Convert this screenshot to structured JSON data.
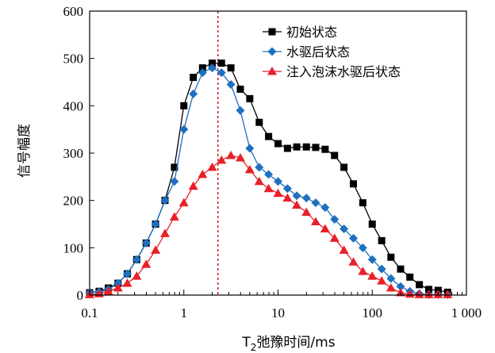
{
  "chart_data": {
    "type": "line",
    "x_scale": "log",
    "xlim": [
      0.1,
      1000
    ],
    "ylim": [
      0,
      600
    ],
    "x_ticks": [
      0.1,
      1,
      10,
      100,
      1000
    ],
    "x_tick_labels": [
      "0.1",
      "1",
      "10",
      "100",
      "1 000"
    ],
    "y_ticks": [
      0,
      100,
      200,
      300,
      400,
      500,
      600
    ],
    "y_tick_labels": [
      "0",
      "100",
      "200",
      "300",
      "400",
      "500",
      "600"
    ],
    "xlabel_main": "T",
    "xlabel_sub": "2",
    "xlabel_rest": "弛豫时间/ms",
    "ylabel": "信号幅度",
    "grid": false,
    "legend_position": "top-right",
    "reference_line": {
      "x": 2.3,
      "color": "#c00000",
      "style": "dashed"
    },
    "series": [
      {
        "name": "初始状态",
        "color": "#000000",
        "marker": "square",
        "x": [
          0.1,
          0.126,
          0.158,
          0.2,
          0.251,
          0.316,
          0.398,
          0.501,
          0.631,
          0.794,
          1.0,
          1.26,
          1.58,
          2.0,
          2.51,
          3.16,
          3.98,
          5.01,
          6.31,
          7.94,
          10.0,
          12.6,
          15.8,
          20.0,
          25.1,
          31.6,
          39.8,
          50.1,
          63.1,
          79.4,
          100,
          126,
          158,
          200,
          251,
          316,
          398,
          501,
          631
        ],
        "y": [
          5,
          8,
          15,
          25,
          45,
          75,
          110,
          150,
          200,
          270,
          400,
          460,
          480,
          490,
          490,
          480,
          435,
          415,
          365,
          335,
          320,
          310,
          313,
          313,
          312,
          308,
          295,
          270,
          235,
          195,
          150,
          115,
          80,
          55,
          38,
          22,
          12,
          10,
          6
        ]
      },
      {
        "name": "水驱后状态",
        "color": "#1f6fbf",
        "marker": "diamond",
        "x": [
          0.1,
          0.126,
          0.158,
          0.2,
          0.251,
          0.316,
          0.398,
          0.501,
          0.631,
          0.794,
          1.0,
          1.26,
          1.58,
          2.0,
          2.51,
          3.16,
          3.98,
          5.01,
          6.31,
          7.94,
          10.0,
          12.6,
          15.8,
          20.0,
          25.1,
          31.6,
          39.8,
          50.1,
          63.1,
          79.4,
          100,
          126,
          158,
          200,
          251,
          316,
          398,
          501,
          631
        ],
        "y": [
          5,
          7,
          12,
          25,
          45,
          75,
          110,
          150,
          200,
          240,
          350,
          425,
          470,
          480,
          470,
          445,
          390,
          310,
          270,
          255,
          240,
          225,
          210,
          205,
          195,
          185,
          160,
          140,
          120,
          100,
          75,
          55,
          35,
          18,
          8,
          3,
          1,
          1,
          1
        ]
      },
      {
        "name": "注入泡沫水驱后状态",
        "color": "#e8202a",
        "marker": "triangle",
        "x": [
          0.1,
          0.126,
          0.158,
          0.2,
          0.251,
          0.316,
          0.398,
          0.501,
          0.631,
          0.794,
          1.0,
          1.26,
          1.58,
          2.0,
          2.51,
          3.16,
          3.98,
          5.01,
          6.31,
          7.94,
          10.0,
          12.6,
          15.8,
          20.0,
          25.1,
          31.6,
          39.8,
          50.1,
          63.1,
          79.4,
          100,
          126,
          158,
          200,
          251,
          316,
          398,
          501,
          631
        ],
        "y": [
          1,
          3,
          8,
          15,
          25,
          40,
          65,
          95,
          130,
          165,
          195,
          230,
          255,
          270,
          285,
          295,
          290,
          265,
          240,
          225,
          215,
          205,
          190,
          175,
          155,
          140,
          120,
          95,
          70,
          50,
          40,
          30,
          15,
          5,
          2,
          1,
          1,
          1,
          1
        ]
      }
    ]
  }
}
